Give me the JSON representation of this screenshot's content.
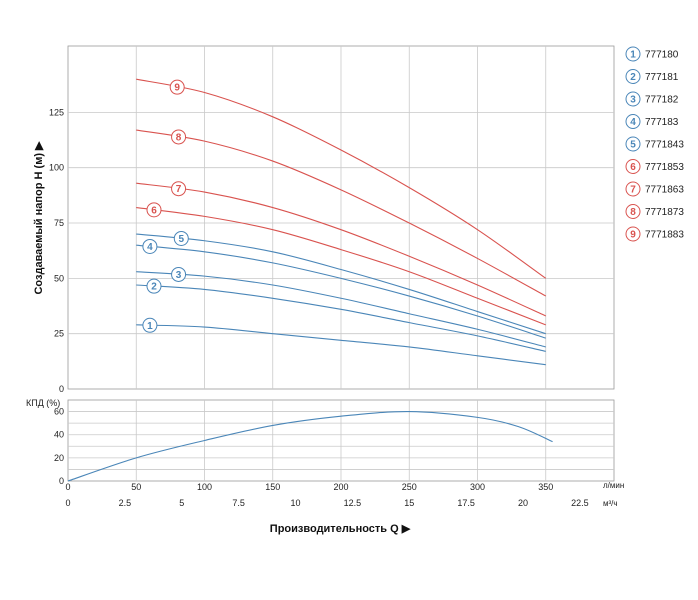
{
  "chart_data": [
    {
      "type": "line",
      "ylabel": "Создаваемый напор H (м) ▶",
      "xlim": [
        0,
        400
      ],
      "ylim": [
        0,
        155
      ],
      "yticks": [
        0,
        25,
        50,
        75,
        100,
        125
      ],
      "grid": true,
      "legend_position": "right",
      "series": [
        {
          "name": "777180",
          "marker": "1",
          "color": "#4a86b8",
          "x": [
            50,
            100,
            150,
            200,
            250,
            300,
            350
          ],
          "y": [
            29,
            28,
            25,
            22,
            19,
            15,
            11
          ]
        },
        {
          "name": "777181",
          "marker": "2",
          "color": "#4a86b8",
          "x": [
            50,
            100,
            150,
            200,
            250,
            300,
            350
          ],
          "y": [
            47,
            45,
            41,
            36,
            30,
            24,
            17
          ]
        },
        {
          "name": "777182",
          "marker": "3",
          "color": "#4a86b8",
          "x": [
            50,
            100,
            150,
            200,
            250,
            300,
            350
          ],
          "y": [
            53,
            51,
            47,
            41,
            34,
            27,
            19
          ]
        },
        {
          "name": "777183",
          "marker": "4",
          "color": "#4a86b8",
          "x": [
            50,
            100,
            150,
            200,
            250,
            300,
            350
          ],
          "y": [
            65,
            62,
            57,
            50,
            42,
            33,
            23
          ]
        },
        {
          "name": "7771843",
          "marker": "5",
          "color": "#4a86b8",
          "x": [
            50,
            100,
            150,
            200,
            250,
            300,
            350
          ],
          "y": [
            70,
            67,
            62,
            54,
            45,
            35,
            25
          ]
        },
        {
          "name": "7771853",
          "marker": "6",
          "color": "#d9534f",
          "x": [
            50,
            100,
            150,
            200,
            250,
            300,
            350
          ],
          "y": [
            82,
            78,
            72,
            63,
            53,
            41,
            29
          ]
        },
        {
          "name": "7771863",
          "marker": "7",
          "color": "#d9534f",
          "x": [
            50,
            100,
            150,
            200,
            250,
            300,
            350
          ],
          "y": [
            93,
            89,
            82,
            72,
            60,
            47,
            33
          ]
        },
        {
          "name": "7771873",
          "marker": "8",
          "color": "#d9534f",
          "x": [
            50,
            100,
            150,
            200,
            250,
            300,
            350
          ],
          "y": [
            117,
            112,
            103,
            90,
            75,
            59,
            42
          ]
        },
        {
          "name": "7771883",
          "marker": "9",
          "color": "#d9534f",
          "x": [
            50,
            100,
            150,
            200,
            250,
            300,
            350
          ],
          "y": [
            140,
            134,
            123,
            108,
            91,
            72,
            50
          ]
        }
      ]
    },
    {
      "type": "line",
      "ylabel": "КПД (%)",
      "xlabel": "Производительность Q ▶",
      "xlim": [
        0,
        400
      ],
      "ylim": [
        0,
        70
      ],
      "yticks": [
        0,
        20,
        40,
        60
      ],
      "yticks_minor": [
        10,
        30,
        50
      ],
      "xticks_lmin": [
        0,
        50,
        100,
        150,
        200,
        250,
        300,
        350
      ],
      "xticks_m3h": [
        "0",
        "2.5",
        "5",
        "7.5",
        "10",
        "12.5",
        "15",
        "17.5",
        "20",
        "22.5"
      ],
      "x_unit_lmin": "л/мин",
      "x_unit_m3h": "м³/ч",
      "grid": true,
      "series": [
        {
          "name": "",
          "color": "#4a86b8",
          "x": [
            0,
            50,
            100,
            150,
            200,
            250,
            300,
            330,
            355
          ],
          "y": [
            0,
            20,
            35,
            48,
            56,
            60,
            55,
            47,
            34
          ]
        }
      ]
    }
  ]
}
